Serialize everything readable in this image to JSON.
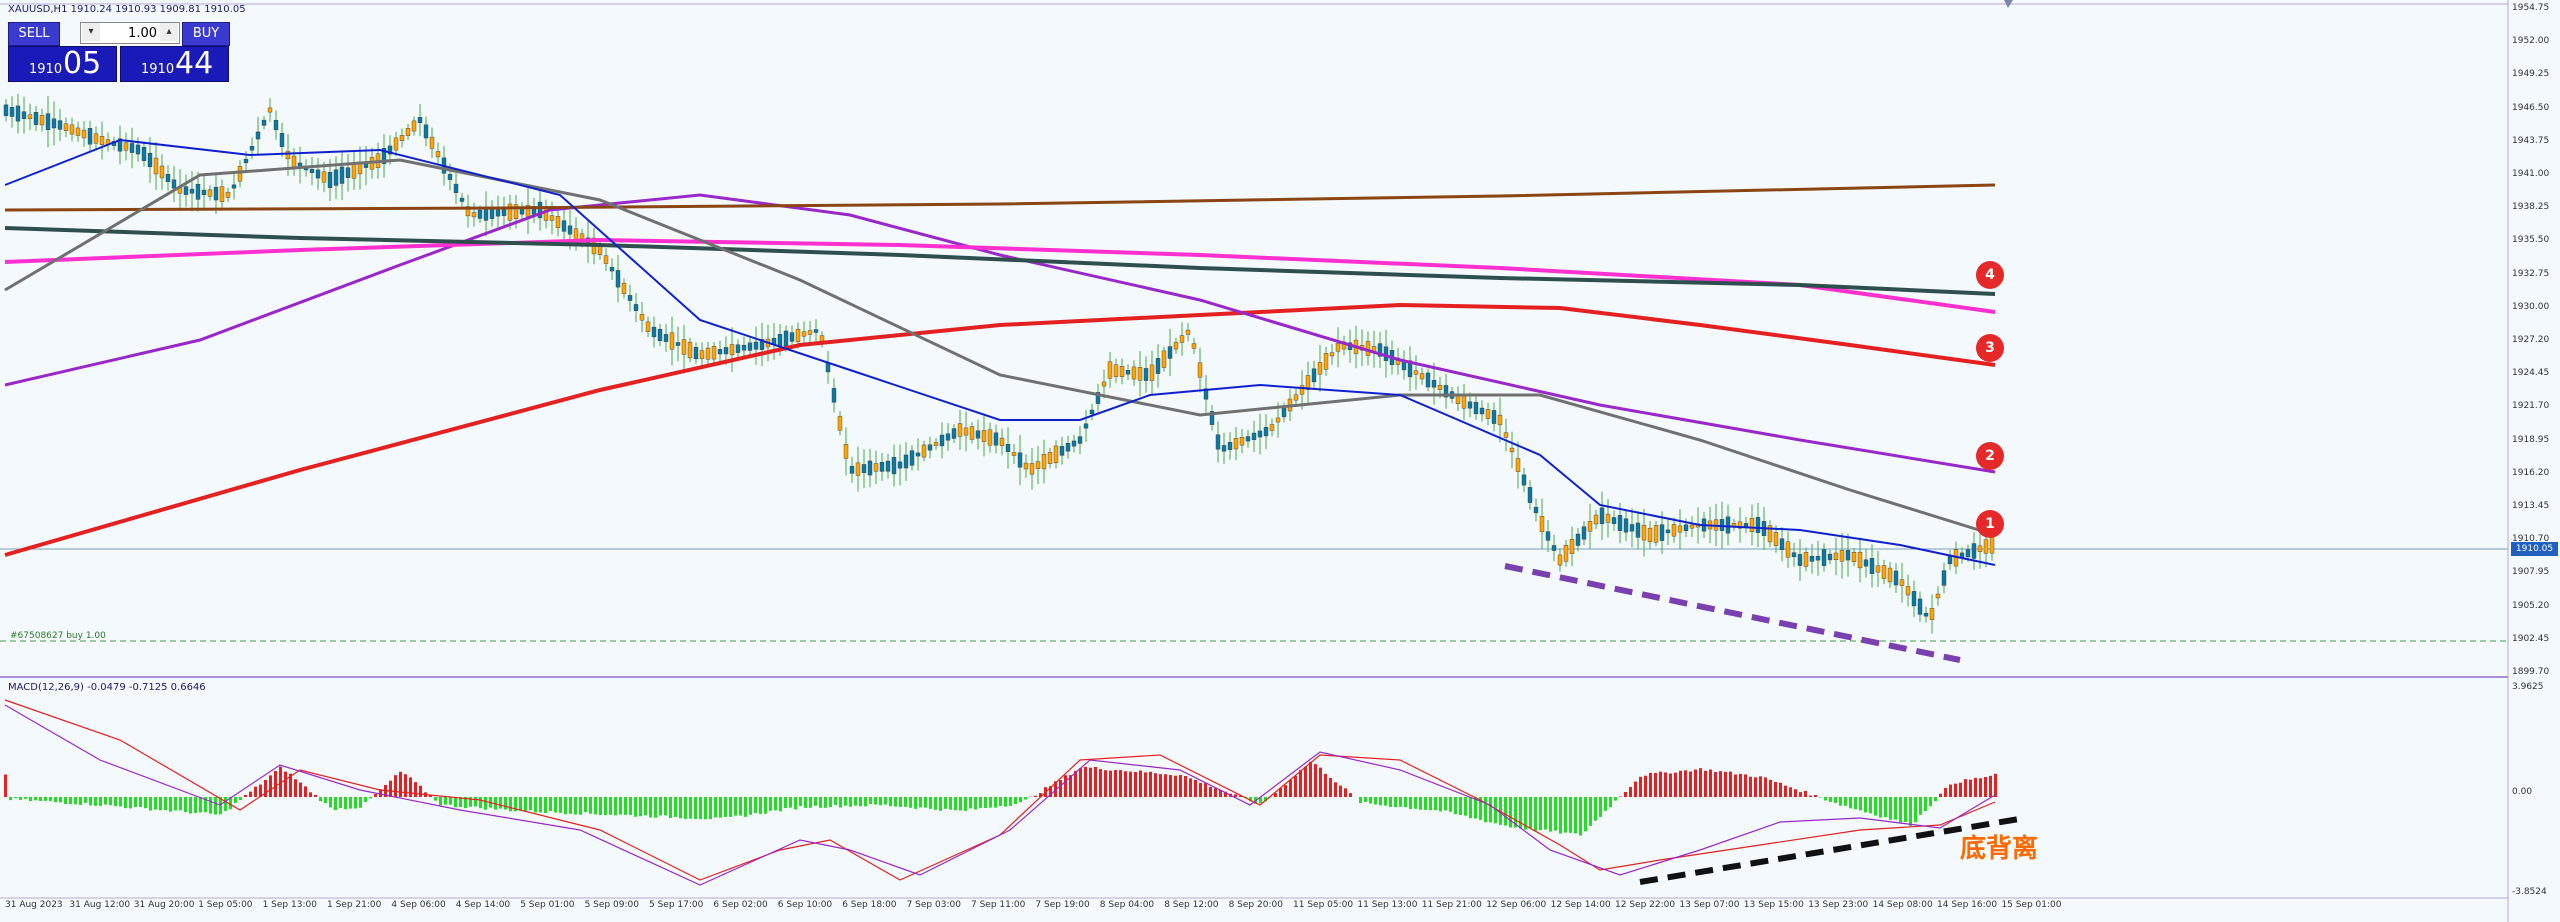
{
  "window": {
    "symbol_info": "XAUUSD,H1  1910.24 1910.93 1909.81 1910.05"
  },
  "order_panel": {
    "sell_label": "SELL",
    "buy_label": "BUY",
    "lot_value": "1.00",
    "sell_price_small": "1910",
    "sell_price_big": "05",
    "buy_price_small": "1910",
    "buy_price_big": "44"
  },
  "position_label": "#67508627 buy 1.00",
  "macd": {
    "title": "MACD(12,26,9) -0.0479 -0.7125 0.6646",
    "axis_labels": [
      "3.9625",
      "0.00",
      "-3.8524"
    ]
  },
  "annotation_text": "底背离",
  "badges": [
    "1",
    "2",
    "3",
    "4"
  ],
  "current_price": "1910.05",
  "colors": {
    "ma_red": "#e52020",
    "ma_purple": "#9a27c9",
    "ma_magenta": "#ff30d0",
    "ma_dark": "#2f4f4f",
    "ma_brown": "#8b4513",
    "ma_gray": "#707070",
    "ma_blue": "#1020d0",
    "up_candle": "#ffa500",
    "down_candle": "#0a7aa0",
    "macd_pos": "#e52020",
    "macd_neg": "#22dd22"
  },
  "chart_data": {
    "type": "candlestick",
    "price_axis": [
      "1954.75",
      "1952.00",
      "1949.25",
      "1946.50",
      "1943.75",
      "1941.00",
      "1938.25",
      "1935.50",
      "1932.75",
      "1930.00",
      "1927.20",
      "1924.45",
      "1921.70",
      "1918.95",
      "1916.20",
      "1913.45",
      "1910.70",
      "1907.95",
      "1905.20",
      "1902.45",
      "1899.70"
    ],
    "time_labels": [
      "31 Aug 2023",
      "31 Aug 12:00",
      "31 Aug 20:00",
      "1 Sep 05:00",
      "1 Sep 13:00",
      "1 Sep 21:00",
      "4 Sep 06:00",
      "4 Sep 14:00",
      "5 Sep 01:00",
      "5 Sep 09:00",
      "5 Sep 17:00",
      "6 Sep 02:00",
      "6 Sep 10:00",
      "6 Sep 18:00",
      "7 Sep 03:00",
      "7 Sep 11:00",
      "7 Sep 19:00",
      "8 Sep 04:00",
      "8 Sep 12:00",
      "8 Sep 20:00",
      "11 Sep 05:00",
      "11 Sep 13:00",
      "11 Sep 21:00",
      "12 Sep 06:00",
      "12 Sep 14:00",
      "12 Sep 22:00",
      "13 Sep 07:00",
      "13 Sep 15:00",
      "13 Sep 23:00",
      "14 Sep 08:00",
      "14 Sep 16:00",
      "15 Sep 01:00"
    ],
    "ylim": [
      1899.7,
      1954.75
    ]
  }
}
